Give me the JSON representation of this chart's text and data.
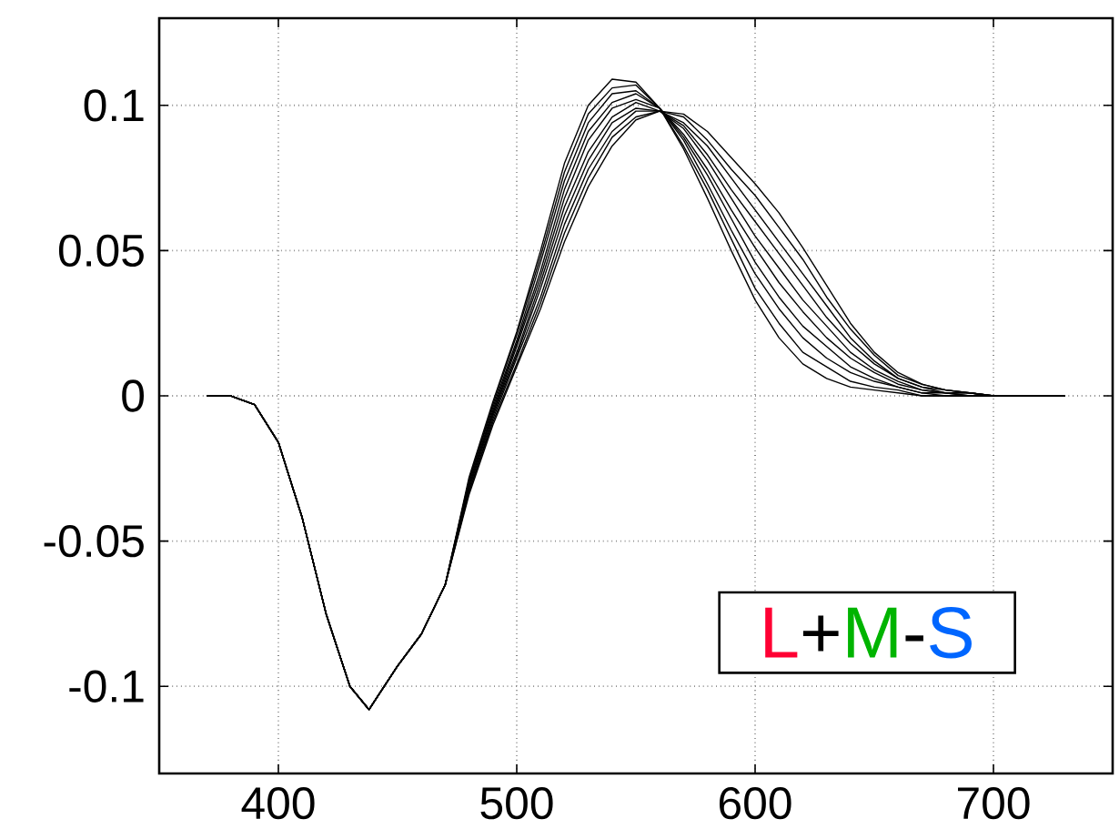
{
  "chart_data": {
    "type": "line",
    "x": [
      370,
      380,
      390,
      400,
      410,
      420,
      430,
      438,
      450,
      460,
      470,
      480,
      490,
      500,
      510,
      520,
      530,
      540,
      550,
      560,
      570,
      580,
      590,
      600,
      610,
      620,
      630,
      640,
      650,
      660,
      670,
      680,
      690,
      700,
      710,
      720,
      730
    ],
    "series": [
      {
        "color": "#000000",
        "values": [
          0,
          0,
          -0.003,
          -0.016,
          -0.042,
          -0.075,
          -0.1,
          -0.108,
          -0.093,
          -0.082,
          -0.065,
          -0.028,
          -0.002,
          0.022,
          0.05,
          0.08,
          0.1,
          0.109,
          0.108,
          0.099,
          0.085,
          0.068,
          0.05,
          0.033,
          0.02,
          0.011,
          0.006,
          0.003,
          0.002,
          0.001,
          0,
          0,
          0,
          0,
          0,
          0,
          0
        ]
      },
      {
        "color": "#000000",
        "values": [
          0,
          0,
          -0.003,
          -0.016,
          -0.042,
          -0.075,
          -0.1,
          -0.108,
          -0.093,
          -0.082,
          -0.065,
          -0.029,
          -0.003,
          0.021,
          0.048,
          0.077,
          0.097,
          0.106,
          0.107,
          0.099,
          0.086,
          0.071,
          0.054,
          0.037,
          0.025,
          0.015,
          0.01,
          0.005,
          0.003,
          0.002,
          0,
          0,
          0,
          0,
          0,
          0,
          0
        ]
      },
      {
        "color": "#000000",
        "values": [
          0,
          0,
          -0.003,
          -0.016,
          -0.042,
          -0.075,
          -0.1,
          -0.108,
          -0.093,
          -0.082,
          -0.065,
          -0.029,
          -0.004,
          0.019,
          0.046,
          0.074,
          0.094,
          0.104,
          0.105,
          0.099,
          0.088,
          0.073,
          0.057,
          0.042,
          0.03,
          0.02,
          0.013,
          0.008,
          0.005,
          0.003,
          0.001,
          0,
          0,
          0,
          0,
          0,
          0
        ]
      },
      {
        "color": "#000000",
        "values": [
          0,
          0,
          -0.003,
          -0.016,
          -0.042,
          -0.075,
          -0.1,
          -0.108,
          -0.093,
          -0.082,
          -0.065,
          -0.03,
          -0.005,
          0.018,
          0.043,
          0.071,
          0.091,
          0.101,
          0.104,
          0.099,
          0.089,
          0.076,
          0.061,
          0.046,
          0.034,
          0.024,
          0.017,
          0.01,
          0.006,
          0.003,
          0.001,
          0.001,
          0,
          0,
          0,
          0,
          0
        ]
      },
      {
        "color": "#000000",
        "values": [
          0,
          0,
          -0.003,
          -0.016,
          -0.042,
          -0.075,
          -0.1,
          -0.108,
          -0.093,
          -0.082,
          -0.065,
          -0.031,
          -0.006,
          0.017,
          0.041,
          0.068,
          0.088,
          0.099,
          0.102,
          0.099,
          0.09,
          0.078,
          0.064,
          0.051,
          0.039,
          0.029,
          0.02,
          0.013,
          0.008,
          0.004,
          0.002,
          0.001,
          0,
          0,
          0,
          0,
          0
        ]
      },
      {
        "color": "#000000",
        "values": [
          0,
          0,
          -0.003,
          -0.016,
          -0.042,
          -0.075,
          -0.1,
          -0.108,
          -0.093,
          -0.082,
          -0.065,
          -0.031,
          -0.006,
          0.015,
          0.039,
          0.065,
          0.084,
          0.096,
          0.101,
          0.098,
          0.092,
          0.081,
          0.068,
          0.055,
          0.044,
          0.033,
          0.024,
          0.015,
          0.009,
          0.005,
          0.002,
          0.001,
          0.001,
          0,
          0,
          0,
          0
        ]
      },
      {
        "color": "#000000",
        "values": [
          0,
          0,
          -0.003,
          -0.016,
          -0.042,
          -0.075,
          -0.1,
          -0.108,
          -0.093,
          -0.082,
          -0.065,
          -0.032,
          -0.007,
          0.014,
          0.037,
          0.062,
          0.081,
          0.094,
          0.099,
          0.098,
          0.093,
          0.083,
          0.071,
          0.06,
          0.049,
          0.038,
          0.027,
          0.018,
          0.011,
          0.006,
          0.003,
          0.001,
          0.001,
          0,
          0,
          0,
          0
        ]
      },
      {
        "color": "#000000",
        "values": [
          0,
          0,
          -0.003,
          -0.016,
          -0.042,
          -0.075,
          -0.1,
          -0.108,
          -0.093,
          -0.082,
          -0.065,
          -0.033,
          -0.008,
          0.013,
          0.034,
          0.059,
          0.078,
          0.091,
          0.098,
          0.098,
          0.094,
          0.086,
          0.075,
          0.064,
          0.053,
          0.042,
          0.031,
          0.02,
          0.012,
          0.006,
          0.003,
          0.002,
          0.001,
          0,
          0,
          0,
          0
        ]
      },
      {
        "color": "#000000",
        "values": [
          0,
          0,
          -0.003,
          -0.016,
          -0.042,
          -0.075,
          -0.1,
          -0.108,
          -0.093,
          -0.082,
          -0.065,
          -0.033,
          -0.009,
          0.011,
          0.032,
          0.056,
          0.075,
          0.089,
          0.096,
          0.098,
          0.096,
          0.088,
          0.078,
          0.069,
          0.058,
          0.047,
          0.034,
          0.023,
          0.014,
          0.007,
          0.004,
          0.002,
          0.001,
          0,
          0,
          0,
          0
        ]
      },
      {
        "color": "#000000",
        "values": [
          0,
          0,
          -0.003,
          -0.016,
          -0.042,
          -0.075,
          -0.1,
          -0.108,
          -0.093,
          -0.082,
          -0.065,
          -0.034,
          -0.01,
          0.01,
          0.03,
          0.053,
          0.072,
          0.086,
          0.095,
          0.098,
          0.097,
          0.091,
          0.082,
          0.073,
          0.063,
          0.051,
          0.038,
          0.025,
          0.015,
          0.008,
          0.004,
          0.002,
          0.001,
          0,
          0,
          0,
          0
        ]
      }
    ],
    "annotations": [
      "L",
      "+",
      "M",
      "-",
      "S"
    ],
    "xlim": [
      350,
      750
    ],
    "ylim": [
      -0.13,
      0.13
    ],
    "xticks": [
      400,
      500,
      600,
      700
    ],
    "yticks": [
      -0.1,
      -0.05,
      0,
      0.05,
      0.1
    ],
    "grid": true,
    "marker": "none",
    "line_style": "solid"
  }
}
